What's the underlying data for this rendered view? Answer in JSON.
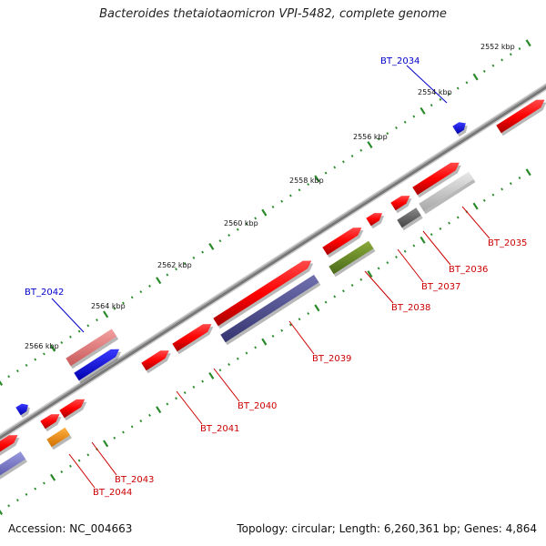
{
  "title": "Bacteroides thetaiotaomicron VPI-5482, complete genome",
  "accession": "Accession: NC_004663",
  "topology": "Topology: circular; Length: 6,260,361 bp; Genes: 4,864",
  "colors": {
    "backbone": "#7a7a7a",
    "tick": "#2a8a2a",
    "label_red": "#cc0000",
    "label_blue": "#0000cc"
  },
  "ticks": [
    {
      "label": "2552 kbp"
    },
    {
      "label": "2554 kbp"
    },
    {
      "label": "2556 kbp"
    },
    {
      "label": "2558 kbp"
    },
    {
      "label": "2560 kbp"
    },
    {
      "label": "2562 kbp"
    },
    {
      "label": "2564 kbp"
    },
    {
      "label": "2566 kbp"
    }
  ],
  "gene_labels": [
    {
      "id": "BT_2034",
      "text": "BT_2034",
      "color": "#0000cc"
    },
    {
      "id": "BT_2035",
      "text": "BT_2035",
      "color": "#cc0000"
    },
    {
      "id": "BT_2036",
      "text": "BT_2036",
      "color": "#cc0000"
    },
    {
      "id": "BT_2037",
      "text": "BT_2037",
      "color": "#cc0000"
    },
    {
      "id": "BT_2038",
      "text": "BT_2038",
      "color": "#cc0000"
    },
    {
      "id": "BT_2039",
      "text": "BT_2039",
      "color": "#cc0000"
    },
    {
      "id": "BT_2040",
      "text": "BT_2040",
      "color": "#cc0000"
    },
    {
      "id": "BT_2041",
      "text": "BT_2041",
      "color": "#cc0000"
    },
    {
      "id": "BT_2042",
      "text": "BT_2042",
      "color": "#0000cc"
    },
    {
      "id": "BT_2043",
      "text": "BT_2043",
      "color": "#cc0000"
    },
    {
      "id": "BT_2044",
      "text": "BT_2044",
      "color": "#cc0000"
    }
  ]
}
